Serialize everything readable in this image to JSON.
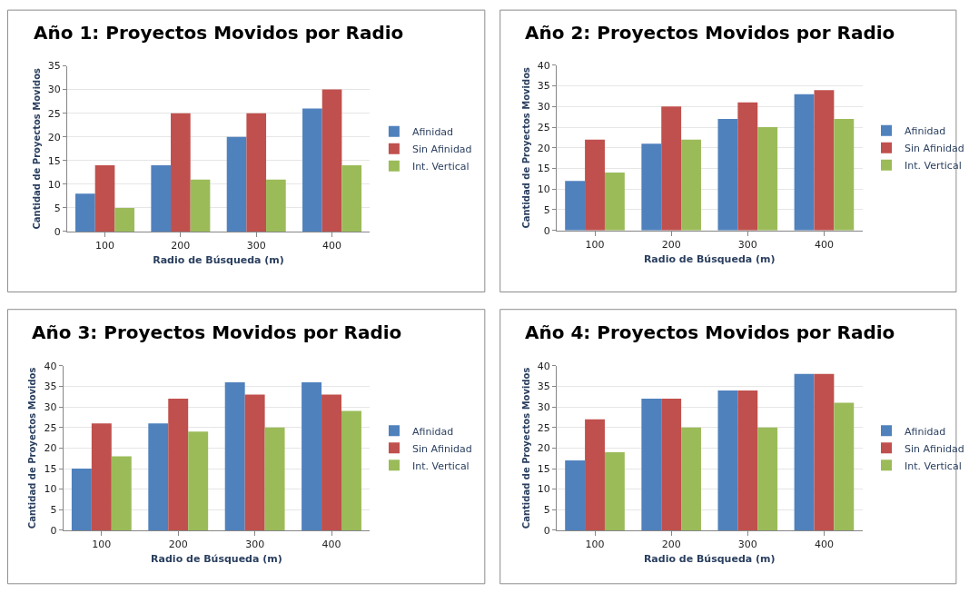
{
  "chart_data": [
    {
      "type": "bar",
      "title": "Año 1: Proyectos Movidos por Radio",
      "xlabel": "Radio de Búsqueda (m)",
      "ylabel": "Cantidad de Proyectos Movidos",
      "categories": [
        "100",
        "200",
        "300",
        "400"
      ],
      "ylim": [
        0,
        35
      ],
      "yticks": [
        0,
        5,
        10,
        15,
        20,
        25,
        30,
        35
      ],
      "grid": "y",
      "legend": "right",
      "series": [
        {
          "name": "Afinidad",
          "color": "#4f81bd",
          "values": [
            8,
            14,
            20,
            26
          ]
        },
        {
          "name": "Sin Afinidad",
          "color": "#c0504d",
          "values": [
            14,
            25,
            25,
            30
          ]
        },
        {
          "name": "Int. Vertical",
          "color": "#9bbb59",
          "values": [
            5,
            11,
            11,
            14
          ]
        }
      ]
    },
    {
      "type": "bar",
      "title": "Año 2: Proyectos Movidos por Radio",
      "xlabel": "Radio de Búsqueda (m)",
      "ylabel": "Cantidad de Proyectos Movidos",
      "categories": [
        "100",
        "200",
        "300",
        "400"
      ],
      "ylim": [
        0,
        40
      ],
      "yticks": [
        0,
        5,
        10,
        15,
        20,
        25,
        30,
        35,
        40
      ],
      "grid": "y",
      "legend": "right",
      "series": [
        {
          "name": "Afinidad",
          "color": "#4f81bd",
          "values": [
            12,
            21,
            27,
            33
          ]
        },
        {
          "name": "Sin Afinidad",
          "color": "#c0504d",
          "values": [
            22,
            30,
            31,
            34
          ]
        },
        {
          "name": "Int. Vertical",
          "color": "#9bbb59",
          "values": [
            14,
            22,
            25,
            27
          ]
        }
      ]
    },
    {
      "type": "bar",
      "title": "Año 3: Proyectos Movidos por Radio",
      "xlabel": "Radio de Búsqueda (m)",
      "ylabel": "Cantidad de Proyectos Movidos",
      "categories": [
        "100",
        "200",
        "300",
        "400"
      ],
      "ylim": [
        0,
        40
      ],
      "yticks": [
        0,
        5,
        10,
        15,
        20,
        25,
        30,
        35,
        40
      ],
      "grid": "y",
      "legend": "right",
      "series": [
        {
          "name": "Afinidad",
          "color": "#4f81bd",
          "values": [
            15,
            26,
            36,
            36
          ]
        },
        {
          "name": "Sin Afinidad",
          "color": "#c0504d",
          "values": [
            26,
            32,
            33,
            33
          ]
        },
        {
          "name": "Int. Vertical",
          "color": "#9bbb59",
          "values": [
            18,
            24,
            25,
            29
          ]
        }
      ]
    },
    {
      "type": "bar",
      "title": "Año 4: Proyectos Movidos por Radio",
      "xlabel": "Radio de Búsqueda (m)",
      "ylabel": "Cantidad de Proyectos Movidos",
      "categories": [
        "100",
        "200",
        "300",
        "400"
      ],
      "ylim": [
        0,
        40
      ],
      "yticks": [
        0,
        5,
        10,
        15,
        20,
        25,
        30,
        35,
        40
      ],
      "grid": "y",
      "legend": "right",
      "series": [
        {
          "name": "Afinidad",
          "color": "#4f81bd",
          "values": [
            17,
            32,
            34,
            38
          ]
        },
        {
          "name": "Sin Afinidad",
          "color": "#c0504d",
          "values": [
            27,
            32,
            34,
            38
          ]
        },
        {
          "name": "Int. Vertical",
          "color": "#9bbb59",
          "values": [
            19,
            25,
            25,
            31
          ]
        }
      ]
    }
  ]
}
